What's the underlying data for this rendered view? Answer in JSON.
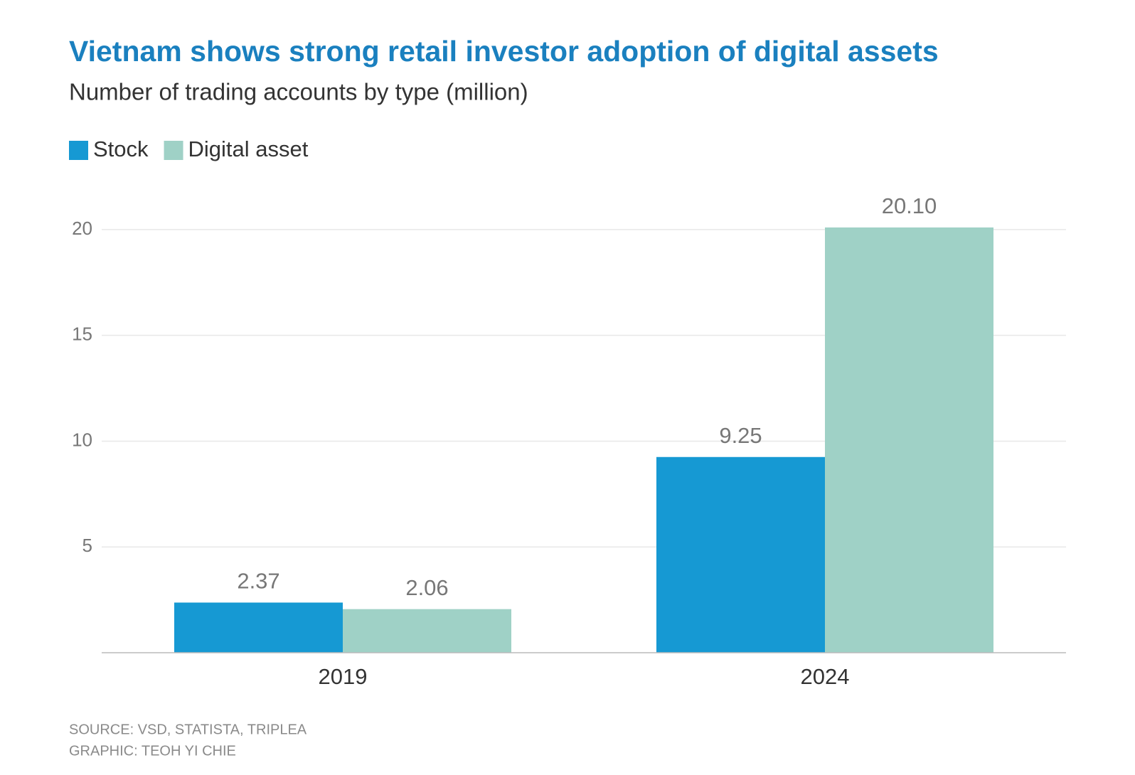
{
  "chart_data": {
    "type": "bar",
    "title": "Vietnam shows strong retail investor adoption of digital assets",
    "subtitle": "Number of trading accounts by type (million)",
    "categories": [
      "2019",
      "2024"
    ],
    "series": [
      {
        "name": "Stock",
        "color": "#1699d3",
        "values": [
          2.37,
          9.25
        ],
        "value_labels": [
          "2.37",
          "9.25"
        ]
      },
      {
        "name": "Digital asset",
        "color": "#9fd1c6",
        "values": [
          2.06,
          20.1
        ],
        "value_labels": [
          "2.06",
          "20.10"
        ]
      }
    ],
    "ylim": [
      0,
      20.5
    ],
    "yticks": [
      5,
      10,
      15,
      20
    ],
    "grid": true,
    "legend": "top-left",
    "source": "SOURCE: VSD, STATISTA, TRIPLEA",
    "credit": "GRAPHIC: TEOH YI CHIE"
  }
}
